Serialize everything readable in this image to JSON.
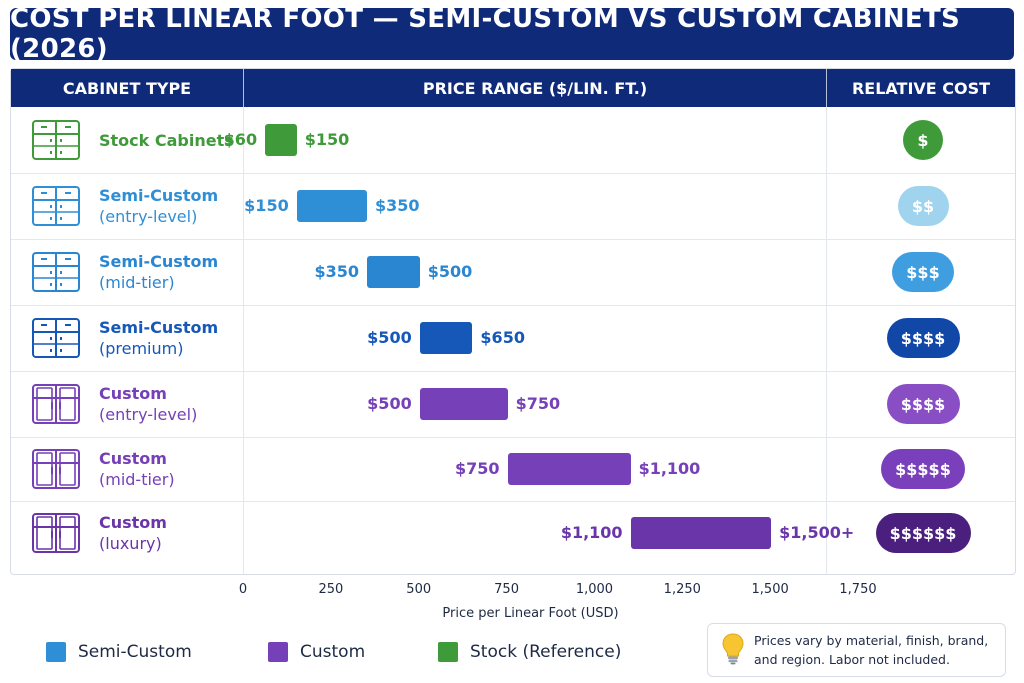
{
  "title": "COST PER LINEAR FOOT — SEMI-CUSTOM VS CUSTOM CABINETS (2026)",
  "table": {
    "headers": {
      "type": "CABINET TYPE",
      "range": "PRICE RANGE ($/LIN. FT.)",
      "relative": "RELATIVE COST"
    }
  },
  "colors": {
    "stock": "#3f9a3a",
    "semi_entry": "#2f8fd6",
    "semi_mid": "#2b86d2",
    "semi_premium": "#1558b8",
    "custom": "#7540b8",
    "custom_luxury": "#6a35a8",
    "header": "#0e2a78"
  },
  "chart_data": {
    "type": "bar",
    "orientation": "horizontal-range",
    "categories": [
      "Stock Cabinets",
      "Semi-Custom (entry-level)",
      "Semi-Custom (mid-tier)",
      "Semi-Custom (premium)",
      "Custom (entry-level)",
      "Custom (mid-tier)",
      "Custom (luxury)"
    ],
    "rows": [
      {
        "line1": "Stock Cabinets",
        "line2": "",
        "group": "Stock (Reference)",
        "low": 60,
        "high": 150,
        "low_label": "$60",
        "high_label": "$150",
        "relative": "$",
        "color": "#3f9a3a",
        "badge_color": "#3f9a3a",
        "badge_text_color": "#ffffff"
      },
      {
        "line1": "Semi-Custom",
        "line2": "(entry-level)",
        "group": "Semi-Custom",
        "low": 150,
        "high": 350,
        "low_label": "$150",
        "high_label": "$350",
        "relative": "$$",
        "color": "#2f8fd6",
        "badge_color": "#9fd3ee",
        "badge_text_color": "#ffffff"
      },
      {
        "line1": "Semi-Custom",
        "line2": "(mid-tier)",
        "group": "Semi-Custom",
        "low": 350,
        "high": 500,
        "low_label": "$350",
        "high_label": "$500",
        "relative": "$$$",
        "color": "#2b86d2",
        "badge_color": "#3f9ee0",
        "badge_text_color": "#ffffff"
      },
      {
        "line1": "Semi-Custom",
        "line2": "(premium)",
        "group": "Semi-Custom",
        "low": 500,
        "high": 650,
        "low_label": "$500",
        "high_label": "$650",
        "relative": "$$$$",
        "color": "#1558b8",
        "badge_color": "#1148a8",
        "badge_text_color": "#ffffff"
      },
      {
        "line1": "Custom",
        "line2": "(entry-level)",
        "group": "Custom",
        "low": 500,
        "high": 750,
        "low_label": "$500",
        "high_label": "$750",
        "relative": "$$$$",
        "color": "#7540b8",
        "badge_color": "#8a4ec4",
        "badge_text_color": "#ffffff"
      },
      {
        "line1": "Custom",
        "line2": "(mid-tier)",
        "group": "Custom",
        "low": 750,
        "high": 1100,
        "low_label": "$750",
        "high_label": "$1,100",
        "relative": "$$$$$",
        "color": "#7540b8",
        "badge_color": "#7a3fbb",
        "badge_text_color": "#ffffff"
      },
      {
        "line1": "Custom",
        "line2": "(luxury)",
        "group": "Custom",
        "low": 1100,
        "high": 1500,
        "low_label": "$1,100",
        "high_label": "$1,500+",
        "relative": "$$$$$$",
        "color": "#6a35a8",
        "badge_color": "#4a1f7e",
        "badge_text_color": "#ffffff"
      }
    ],
    "xlim": [
      0,
      1750
    ],
    "xticks": [
      0,
      250,
      500,
      750,
      1000,
      1250,
      1500,
      1750
    ],
    "xtick_labels": [
      "0",
      "250",
      "500",
      "750",
      "1,000",
      "1,250",
      "1,500",
      "1,750"
    ],
    "xlabel": "Price per Linear Foot (USD)",
    "grid": false,
    "legend_placement": "bottom-left",
    "legend": [
      {
        "label": "Semi-Custom",
        "color": "#2f8fd6"
      },
      {
        "label": "Custom",
        "color": "#7540b8"
      },
      {
        "label": "Stock (Reference)",
        "color": "#3f9a3a"
      }
    ]
  },
  "note": {
    "icon": "lightbulb-icon",
    "text": "Prices vary by material, finish, brand, and region. Labor not included."
  }
}
